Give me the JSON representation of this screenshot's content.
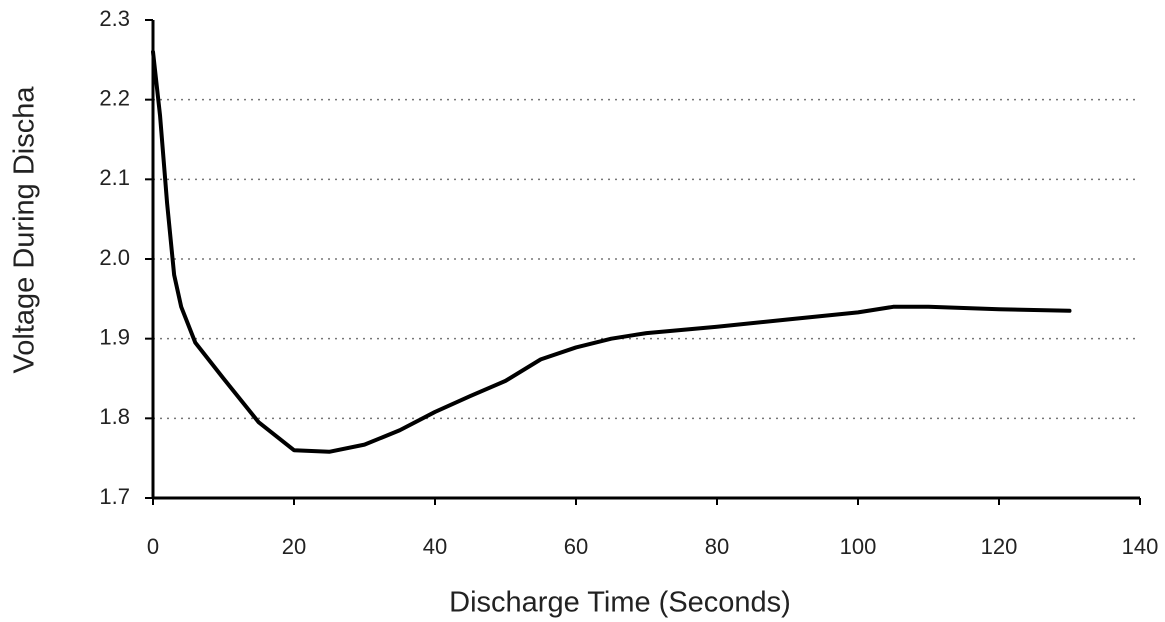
{
  "chart_data": {
    "type": "line",
    "xlabel": "Discharge Time (Seconds)",
    "ylabel": "Voltage During Discha",
    "x": [
      0,
      1,
      2,
      3,
      4,
      6,
      10,
      15,
      20,
      25,
      30,
      35,
      40,
      45,
      50,
      55,
      60,
      65,
      70,
      80,
      90,
      100,
      105,
      110,
      120,
      130
    ],
    "series": [
      {
        "name": "Voltage",
        "color": "#000000",
        "values": [
          2.26,
          2.18,
          2.07,
          1.98,
          1.94,
          1.895,
          1.85,
          1.795,
          1.76,
          1.758,
          1.767,
          1.785,
          1.808,
          1.828,
          1.847,
          1.874,
          1.889,
          1.9,
          1.907,
          1.915,
          1.924,
          1.933,
          1.94,
          1.94,
          1.937,
          1.935
        ]
      }
    ],
    "xlim": [
      0,
      140
    ],
    "xticks": [
      0,
      20,
      40,
      60,
      80,
      100,
      120,
      140
    ],
    "ylim": [
      1.7,
      2.3
    ],
    "yticks": [
      1.7,
      1.8,
      1.9,
      {
        "value": 2,
        "label": "2.0"
      },
      2.1,
      2.2,
      2.3
    ],
    "grid": true
  }
}
